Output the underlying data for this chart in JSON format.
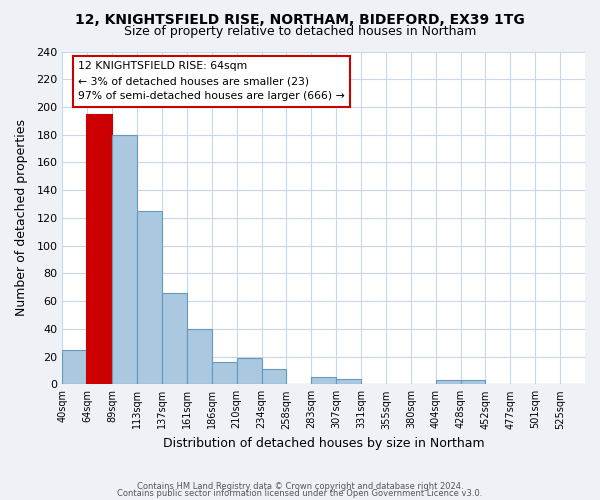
{
  "title1": "12, KNIGHTSFIELD RISE, NORTHAM, BIDEFORD, EX39 1TG",
  "title2": "Size of property relative to detached houses in Northam",
  "xlabel": "Distribution of detached houses by size in Northam",
  "ylabel": "Number of detached properties",
  "bins": [
    40,
    64,
    89,
    113,
    137,
    161,
    186,
    210,
    234,
    258,
    283,
    307,
    331,
    355,
    380,
    404,
    428,
    452,
    477,
    501,
    525
  ],
  "counts": [
    25,
    194,
    180,
    125,
    66,
    40,
    16,
    19,
    11,
    0,
    5,
    4,
    0,
    0,
    0,
    3,
    3,
    0,
    0,
    0,
    0
  ],
  "highlight_bin_index": 1,
  "highlight_color": "#cc0000",
  "bar_color": "#aac8e0",
  "bar_edge_color": "#6699bb",
  "highlight_edge_color": "#cc0000",
  "annotation_box_color": "#ffffff",
  "annotation_border_color": "#cc0000",
  "annotation_line1": "12 KNIGHTSFIELD RISE: 64sqm",
  "annotation_line2": "← 3% of detached houses are smaller (23)",
  "annotation_line3": "97% of semi-detached houses are larger (666) →",
  "ylim": [
    0,
    240
  ],
  "yticks": [
    0,
    20,
    40,
    60,
    80,
    100,
    120,
    140,
    160,
    180,
    200,
    220,
    240
  ],
  "tick_labels": [
    "40sqm",
    "64sqm",
    "89sqm",
    "113sqm",
    "137sqm",
    "161sqm",
    "186sqm",
    "210sqm",
    "234sqm",
    "258sqm",
    "283sqm",
    "307sqm",
    "331sqm",
    "355sqm",
    "380sqm",
    "404sqm",
    "428sqm",
    "452sqm",
    "477sqm",
    "501sqm",
    "525sqm"
  ],
  "footer1": "Contains HM Land Registry data © Crown copyright and database right 2024.",
  "footer2": "Contains public sector information licensed under the Open Government Licence v3.0.",
  "bg_color": "#eef2f7",
  "plot_bg_color": "#ffffff",
  "grid_color": "#c8d8e8"
}
